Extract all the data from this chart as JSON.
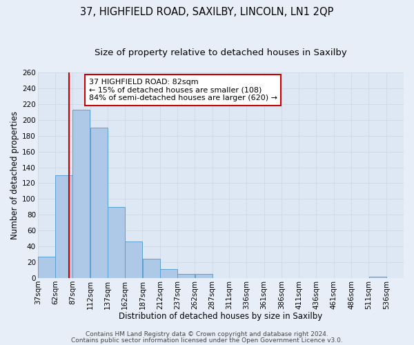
{
  "title": "37, HIGHFIELD ROAD, SAXILBY, LINCOLN, LN1 2QP",
  "subtitle": "Size of property relative to detached houses in Saxilby",
  "xlabel": "Distribution of detached houses by size in Saxilby",
  "ylabel": "Number of detached properties",
  "annotation_line1": "37 HIGHFIELD ROAD: 82sqm",
  "annotation_line2": "← 15% of detached houses are smaller (108)",
  "annotation_line3": "84% of semi-detached houses are larger (620) →",
  "bar_left_edges": [
    37,
    62,
    87,
    112,
    137,
    162,
    187,
    212,
    237,
    262,
    287,
    311,
    336,
    361,
    386,
    411,
    436,
    461,
    486,
    511
  ],
  "bar_widths": [
    25,
    25,
    25,
    25,
    25,
    25,
    25,
    25,
    25,
    25,
    24,
    25,
    25,
    25,
    25,
    25,
    25,
    25,
    25,
    25
  ],
  "bar_heights": [
    27,
    130,
    213,
    190,
    90,
    46,
    24,
    11,
    5,
    5,
    0,
    0,
    0,
    0,
    0,
    0,
    0,
    0,
    0,
    2
  ],
  "xtick_labels": [
    "37sqm",
    "62sqm",
    "87sqm",
    "112sqm",
    "137sqm",
    "162sqm",
    "187sqm",
    "212sqm",
    "237sqm",
    "262sqm",
    "287sqm",
    "311sqm",
    "336sqm",
    "361sqm",
    "386sqm",
    "411sqm",
    "436sqm",
    "461sqm",
    "486sqm",
    "511sqm",
    "536sqm"
  ],
  "xtick_positions": [
    37,
    62,
    87,
    112,
    137,
    162,
    187,
    212,
    237,
    262,
    287,
    311,
    336,
    361,
    386,
    411,
    436,
    461,
    486,
    511,
    536
  ],
  "ylim": [
    0,
    260
  ],
  "xlim": [
    37,
    561
  ],
  "bar_color": "#aec9e8",
  "bar_edge_color": "#5a9fd4",
  "vline_x": 82,
  "vline_color": "#cc0000",
  "annotation_box_color": "#ffffff",
  "annotation_box_edge": "#cc0000",
  "grid_color": "#d0d8e8",
  "bg_color": "#dde8f4",
  "fig_bg_color": "#e8eef8",
  "footer_line1": "Contains HM Land Registry data © Crown copyright and database right 2024.",
  "footer_line2": "Contains public sector information licensed under the Open Government Licence v3.0.",
  "title_fontsize": 10.5,
  "subtitle_fontsize": 9.5,
  "axis_label_fontsize": 8.5,
  "tick_fontsize": 7.5,
  "annotation_fontsize": 8,
  "footer_fontsize": 6.5,
  "yticks": [
    0,
    20,
    40,
    60,
    80,
    100,
    120,
    140,
    160,
    180,
    200,
    220,
    240,
    260
  ]
}
